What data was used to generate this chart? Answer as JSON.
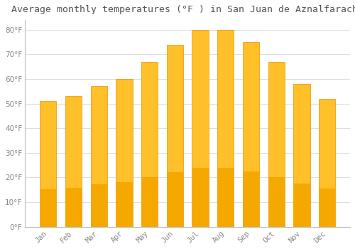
{
  "title": "Average monthly temperatures (°F ) in San Juan de Aznalfarache",
  "months": [
    "Jan",
    "Feb",
    "Mar",
    "Apr",
    "May",
    "Jun",
    "Jul",
    "Aug",
    "Sep",
    "Oct",
    "Nov",
    "Dec"
  ],
  "values": [
    51,
    53,
    57,
    60,
    67,
    74,
    80,
    80,
    75,
    67,
    58,
    52
  ],
  "bar_color_top": "#FFC02A",
  "bar_color_bottom": "#F5A800",
  "bar_edge_color": "#E89000",
  "background_color": "#FFFFFF",
  "plot_bg_color": "#FFFFFF",
  "grid_color": "#DDDDDD",
  "tick_label_color": "#888888",
  "title_color": "#555555",
  "ylim": [
    0,
    84
  ],
  "yticks": [
    0,
    10,
    20,
    30,
    40,
    50,
    60,
    70,
    80
  ],
  "bar_width": 0.65,
  "title_fontsize": 9.5
}
